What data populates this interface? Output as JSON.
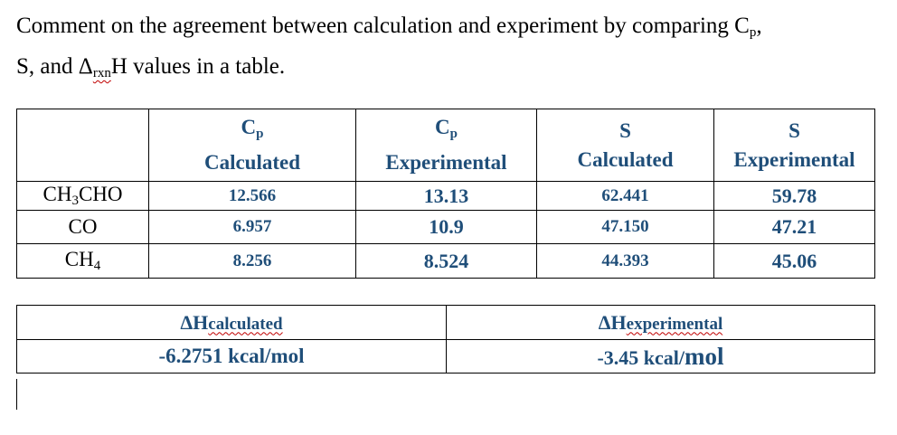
{
  "question": {
    "line1_pre": "Comment on the agreement between calculation and experiment by comparing C",
    "line1_sub": "p",
    "line1_post": ",",
    "line2_a": "S, and Δ",
    "line2_sub": "rxn",
    "line2_b": "H values in a table."
  },
  "table1": {
    "headers": [
      {
        "l1": "C",
        "sub": "p",
        "l2": "Calculated"
      },
      {
        "l1": "C",
        "sub": "p",
        "l2": "Experimental"
      },
      {
        "l1": "S",
        "sub": "",
        "l2": "Calculated"
      },
      {
        "l1": "S",
        "sub": "",
        "l2": "Experimental"
      }
    ],
    "rows": [
      {
        "label_a": "CH",
        "label_sub1": "3",
        "label_b": "CHO",
        "cp_calc": "12.566",
        "cp_exp": "13.13",
        "s_calc": "62.441",
        "s_exp": "59.78"
      },
      {
        "label_a": "CO",
        "label_sub1": "",
        "label_b": "",
        "cp_calc": "6.957",
        "cp_exp": "10.9",
        "s_calc": "47.150",
        "s_exp": "47.21"
      },
      {
        "label_a": "CH",
        "label_sub1": "4",
        "label_b": "",
        "cp_calc": "8.256",
        "cp_exp": "8.524",
        "s_calc": "44.393",
        "s_exp": "45.06"
      }
    ]
  },
  "table2": {
    "h1_a": "ΔH",
    "h1_b": "calculated",
    "h2_a": "ΔH",
    "h2_b": "experimental",
    "v1": "-6.2751 kcal/mol",
    "v2_a": "-3.45 kcal/",
    "v2_b": "mol"
  }
}
